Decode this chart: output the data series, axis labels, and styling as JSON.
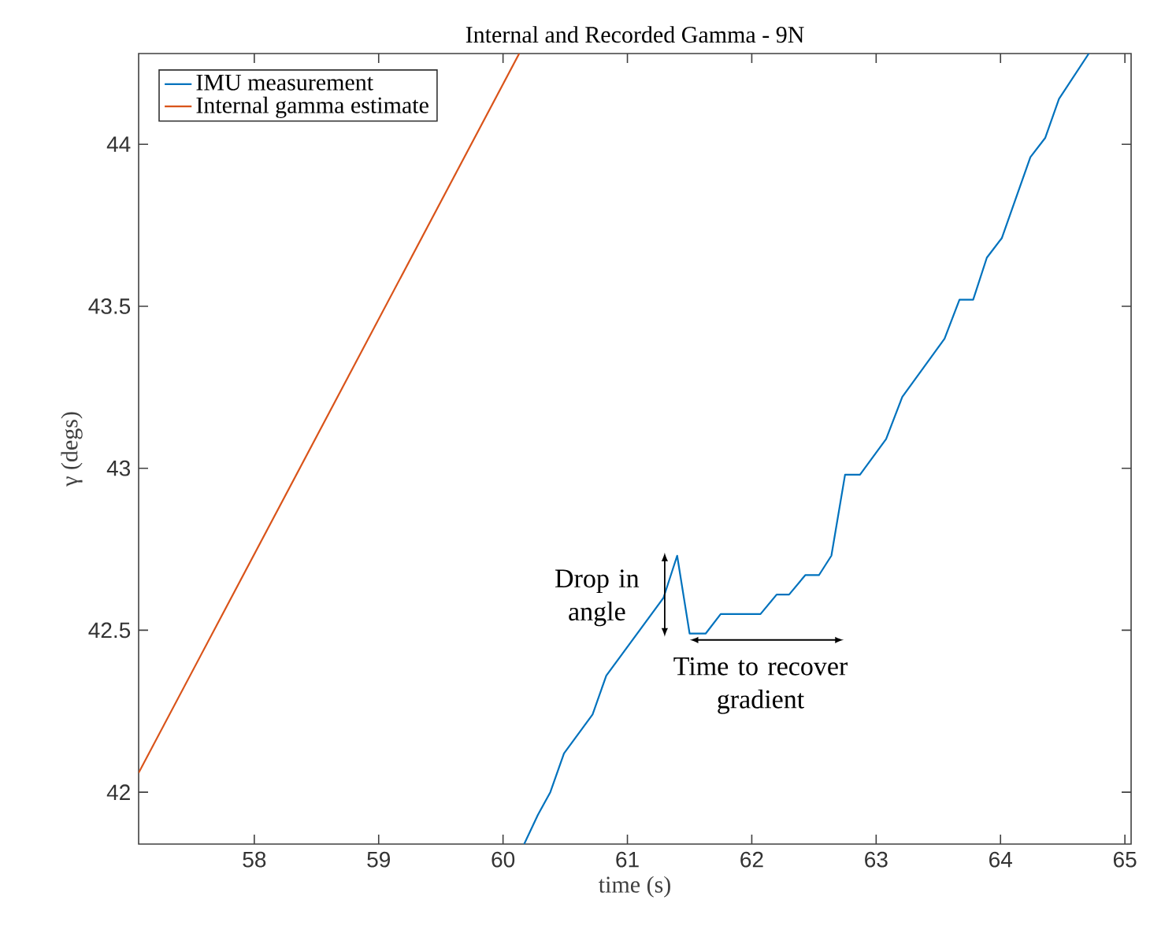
{
  "chart_data": {
    "type": "line",
    "title": "Internal and Recorded Gamma - 9N",
    "xlabel": "time (s)",
    "ylabel": "γ (degs)",
    "xlim": [
      57.07,
      65.05
    ],
    "ylim": [
      41.84,
      44.28
    ],
    "xticks": [
      58,
      59,
      60,
      61,
      62,
      63,
      64,
      65
    ],
    "yticks": [
      42,
      42.5,
      43,
      43.5,
      44
    ],
    "legend": "top left",
    "grid": false,
    "series": [
      {
        "name": "IMU measurement",
        "color": "#0072bd",
        "x": [
          60.17,
          60.28,
          60.38,
          60.49,
          60.72,
          60.83,
          61.29,
          61.4,
          61.5,
          61.63,
          61.75,
          62.07,
          62.2,
          62.3,
          62.43,
          62.54,
          62.64,
          62.75,
          62.87,
          63.08,
          63.21,
          63.55,
          63.67,
          63.78,
          63.89,
          64.01,
          64.24,
          64.36,
          64.47,
          64.71
        ],
        "values": [
          41.84,
          41.93,
          42.0,
          42.12,
          42.24,
          42.36,
          42.6,
          42.73,
          42.49,
          42.49,
          42.55,
          42.55,
          42.61,
          42.61,
          42.67,
          42.67,
          42.73,
          42.98,
          42.98,
          43.09,
          43.22,
          43.4,
          43.52,
          43.52,
          43.65,
          43.71,
          43.96,
          44.02,
          44.14,
          44.28
        ]
      },
      {
        "name": "Internal gamma estimate",
        "color": "#d95319",
        "x": [
          57.07,
          60.13
        ],
        "values": [
          42.06,
          44.28
        ]
      }
    ],
    "annotations": [
      {
        "text": "Drop in angle",
        "x": 61.4,
        "y": 42.6
      },
      "Time to recover gradient"
    ]
  }
}
